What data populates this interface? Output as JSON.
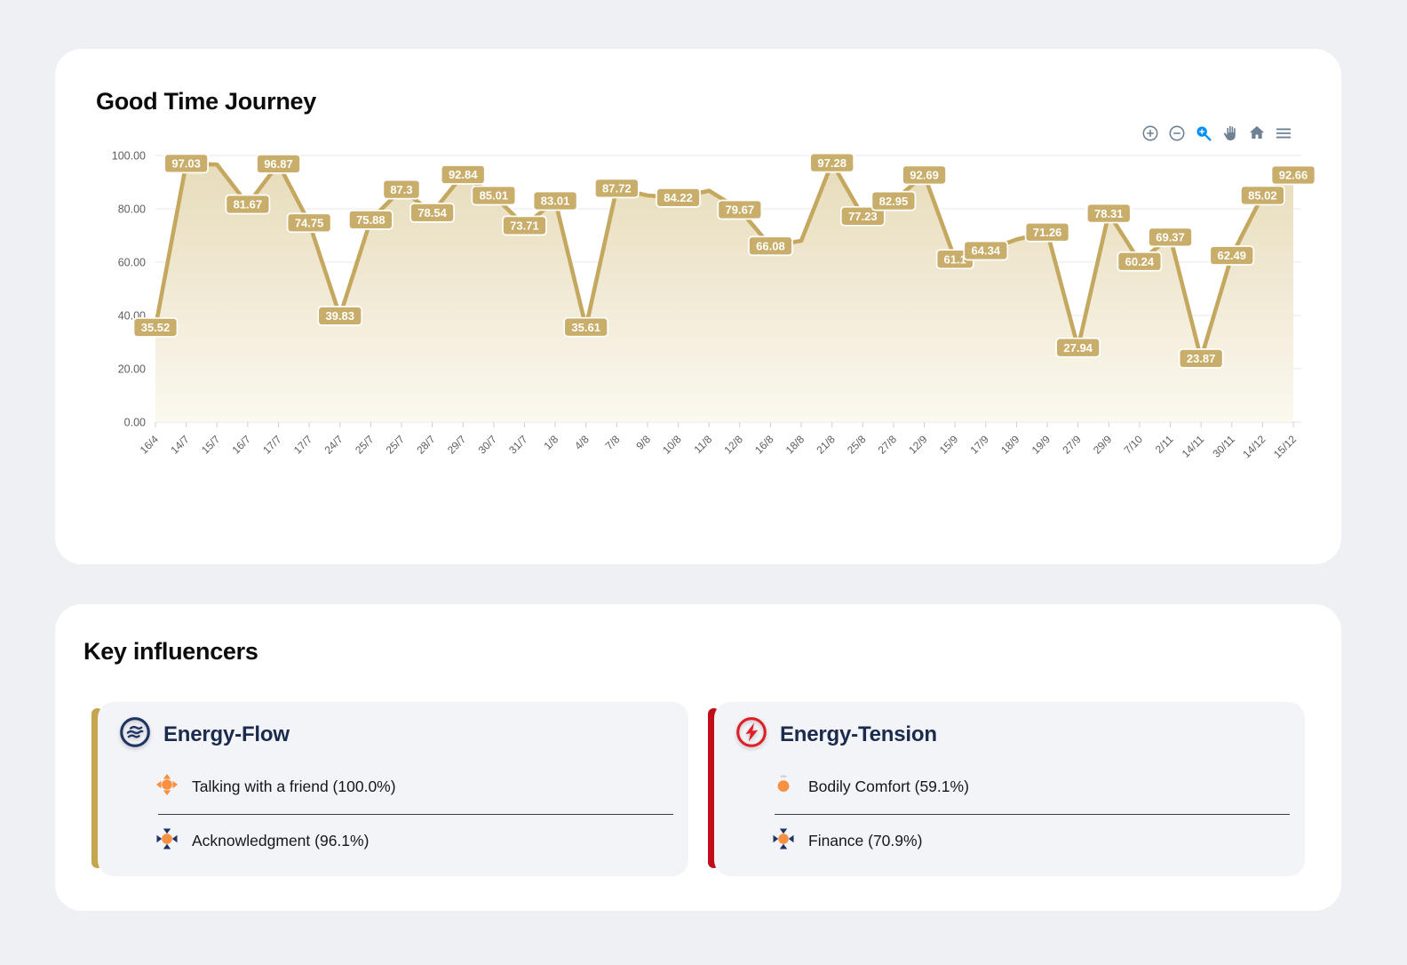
{
  "chart_card": {
    "title": "Good Time Journey",
    "toolbar": {
      "icons": [
        "zoom-in",
        "zoom-out",
        "selection-zoom",
        "pan",
        "home",
        "menu"
      ],
      "active_icon": "selection-zoom",
      "icon_color": "#6E8192",
      "active_color": "#008FFB"
    }
  },
  "chart_data": {
    "type": "area",
    "title": "Good Time Journey",
    "x": [
      "16/4",
      "14/7",
      "15/7",
      "16/7",
      "17/7",
      "17/7",
      "24/7",
      "25/7",
      "25/7",
      "28/7",
      "29/7",
      "30/7",
      "31/7",
      "1/8",
      "4/8",
      "7/8",
      "9/8",
      "10/8",
      "11/8",
      "12/8",
      "16/8",
      "18/8",
      "21/8",
      "25/8",
      "27/8",
      "12/9",
      "15/9",
      "17/9",
      "18/9",
      "19/9",
      "27/9",
      "29/9",
      "7/10",
      "2/11",
      "14/11",
      "30/11",
      "14/12",
      "15/12"
    ],
    "values": [
      35.52,
      97.03,
      96.6,
      81.67,
      96.87,
      74.75,
      39.83,
      75.88,
      87.3,
      78.54,
      92.84,
      85.01,
      73.71,
      83.01,
      35.61,
      87.72,
      85.0,
      84.22,
      86.8,
      79.67,
      66.08,
      68.0,
      97.28,
      77.23,
      82.95,
      92.69,
      61.1,
      64.34,
      68.5,
      71.26,
      27.94,
      78.31,
      60.24,
      69.37,
      23.87,
      62.49,
      85.02,
      92.66
    ],
    "point_labels": [
      "35.52",
      "97.03",
      null,
      "81.67",
      "96.87",
      "74.75",
      "39.83",
      "75.88",
      "87.3",
      "78.54",
      "92.84",
      "85.01",
      "73.71",
      "83.01",
      "35.61",
      "87.72",
      null,
      "84.22",
      null,
      "79.67",
      "66.08",
      null,
      "97.28",
      "77.23",
      "82.95",
      "92.69",
      "61.1",
      "64.34",
      null,
      "71.26",
      "27.94",
      "78.31",
      "60.24",
      "69.37",
      "23.87",
      "62.49",
      "85.02",
      "92.66"
    ],
    "xlabel": "",
    "ylabel": "",
    "ylim": [
      0,
      100
    ],
    "ytick_values": [
      100,
      80,
      60,
      40,
      20,
      0
    ],
    "ytick_labels": [
      "100.00",
      "80.00",
      "60.00",
      "40.00",
      "20.00",
      "0.00"
    ],
    "grid": true,
    "legend": "none",
    "colors": {
      "line": "#C5A860",
      "label_bg": "#C9AE6B",
      "label_text": "#FFFFFF",
      "area_top": "#E6DAB6",
      "area_mid": "#F1EAD6",
      "area_bottom": "#FBF8EF",
      "grid": "#E9E9E9",
      "axis_line": "#E0E0E0",
      "tick": "#CFCFCF",
      "axis_text": "#5B5D62"
    }
  },
  "influencers": {
    "heading": "Key influencers",
    "cards": [
      {
        "title": "Energy-Flow",
        "accent_color": "#C5A64F",
        "icon": "flow-waves-icon",
        "icon_color": "#1E3563",
        "items": [
          {
            "icon": "expand-arrows-icon",
            "label": "Talking with a friend (100.0%)"
          },
          {
            "icon": "contract-arrows-icon",
            "label": "Acknowledgment (96.1%)"
          }
        ]
      },
      {
        "title": "Energy-Tension",
        "accent_color": "#C00D19",
        "icon": "lightning-icon",
        "icon_color": "#DF1F26",
        "items": [
          {
            "icon": "dot-icon",
            "label": "Bodily Comfort (59.1%)"
          },
          {
            "icon": "contract-arrows-icon",
            "label": "Finance (70.9%)"
          }
        ]
      }
    ]
  }
}
